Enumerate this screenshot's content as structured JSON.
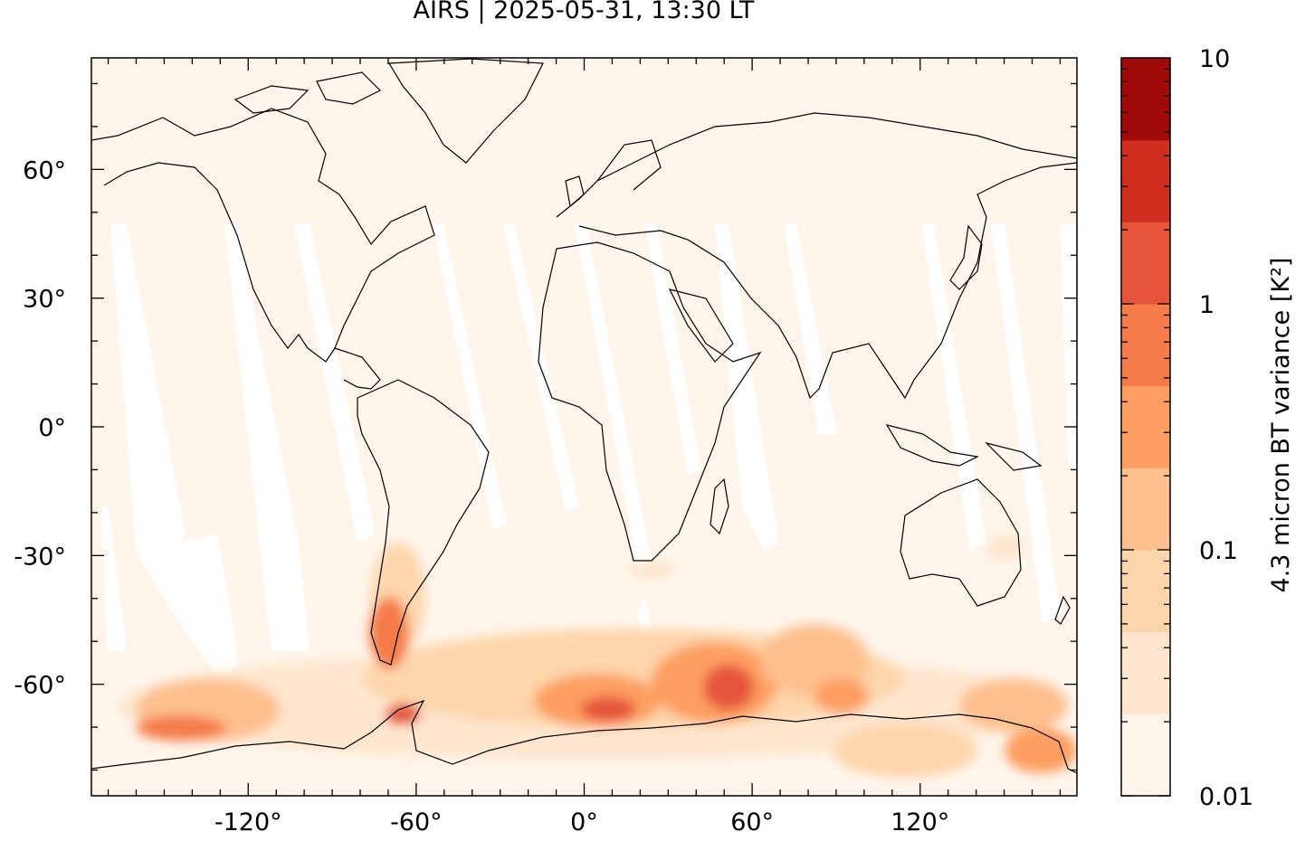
{
  "title": "AIRS | 2025-05-31, 13:30 LT",
  "colors": {
    "background_map": "#fff5eb",
    "swath_gap": "#ffffff",
    "coast": "#000000",
    "levels": [
      "#fff5eb",
      "#fee6ce",
      "#fdd6ab",
      "#fdc08e",
      "#fd9f62",
      "#f57b4a",
      "#e6553a",
      "#ce2d1f",
      "#a00b09"
    ]
  },
  "map": {
    "lon_ticks": [
      -120,
      -60,
      0,
      60,
      120
    ],
    "lon_tick_labels": [
      "-120°",
      "-60°",
      "0°",
      "60°",
      "120°"
    ],
    "lat_ticks": [
      60,
      30,
      0,
      -30,
      -60
    ],
    "lat_tick_labels": [
      "60°",
      "30°",
      "0°",
      "-30°",
      "-60°"
    ],
    "lon_range": [
      -176,
      176
    ],
    "lat_range": [
      -86,
      86
    ]
  },
  "colorbar": {
    "label": "4.3 micron BT variance [K²]",
    "tick_labels": [
      "10",
      "1",
      "0.1",
      "0.01"
    ],
    "scale": "log",
    "range": [
      0.01,
      10
    ]
  }
}
